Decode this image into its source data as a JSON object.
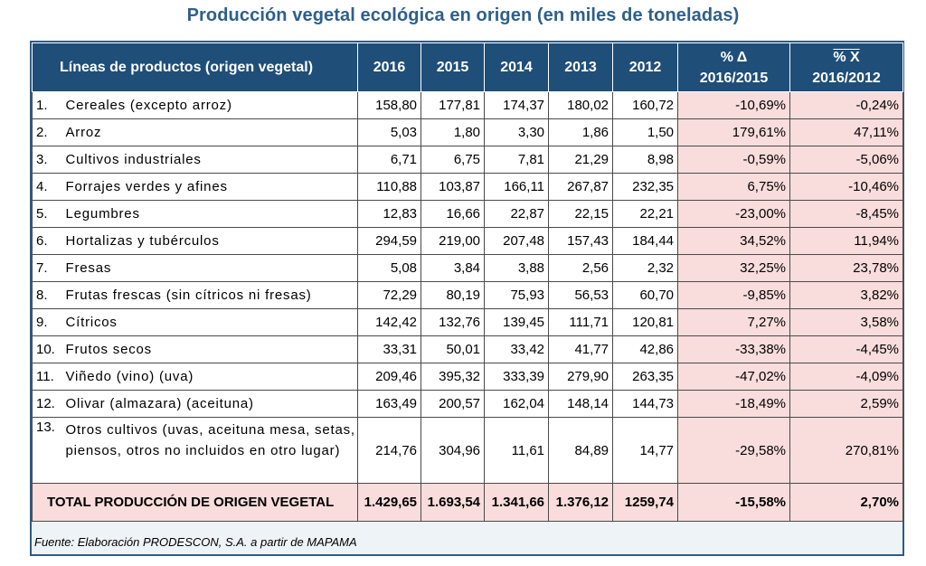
{
  "title": "Producción vegetal ecológica en origen (en miles de toneladas)",
  "headers": {
    "category": "Líneas de productos (origen vegetal)",
    "years": [
      "2016",
      "2015",
      "2014",
      "2013",
      "2012"
    ],
    "delta_symbol": "% Δ",
    "delta_period": "2016/2015",
    "mean_symbol": "% X",
    "mean_period": "2016/2012"
  },
  "rows": [
    {
      "idx": "1.",
      "name": "Cereales (excepto arroz)",
      "v": [
        "158,80",
        "177,81",
        "174,37",
        "180,02",
        "160,72"
      ],
      "delta": "-10,69%",
      "mean": "-0,24%"
    },
    {
      "idx": "2.",
      "name": "Arroz",
      "v": [
        "5,03",
        "1,80",
        "3,30",
        "1,86",
        "1,50"
      ],
      "delta": "179,61%",
      "mean": "47,11%"
    },
    {
      "idx": "3.",
      "name": "Cultivos industriales",
      "v": [
        "6,71",
        "6,75",
        "7,81",
        "21,29",
        "8,98"
      ],
      "delta": "-0,59%",
      "mean": "-5,06%"
    },
    {
      "idx": "4.",
      "name": "Forrajes verdes y afines",
      "v": [
        "110,88",
        "103,87",
        "166,11",
        "267,87",
        "232,35"
      ],
      "delta": "6,75%",
      "mean": "-10,46%"
    },
    {
      "idx": "5.",
      "name": "Legumbres",
      "v": [
        "12,83",
        "16,66",
        "22,87",
        "22,15",
        "22,21"
      ],
      "delta": "-23,00%",
      "mean": "-8,45%"
    },
    {
      "idx": "6.",
      "name": "Hortalizas y tubérculos",
      "v": [
        "294,59",
        "219,00",
        "207,48",
        "157,43",
        "184,44"
      ],
      "delta": "34,52%",
      "mean": "11,94%"
    },
    {
      "idx": "7.",
      "name": "Fresas",
      "v": [
        "5,08",
        "3,84",
        "3,88",
        "2,56",
        "2,32"
      ],
      "delta": "32,25%",
      "mean": "23,78%"
    },
    {
      "idx": "8.",
      "name": "Frutas frescas (sin cítricos ni fresas)",
      "v": [
        "72,29",
        "80,19",
        "75,93",
        "56,53",
        "60,70"
      ],
      "delta": "-9,85%",
      "mean": "3,82%"
    },
    {
      "idx": "9.",
      "name": "Cítricos",
      "v": [
        "142,42",
        "132,76",
        "139,45",
        "111,71",
        "120,81"
      ],
      "delta": "7,27%",
      "mean": "3,58%"
    },
    {
      "idx": "10.",
      "name": "Frutos secos",
      "v": [
        "33,31",
        "50,01",
        "33,42",
        "41,77",
        "42,86"
      ],
      "delta": "-33,38%",
      "mean": "-4,45%"
    },
    {
      "idx": "11.",
      "name": "Viñedo (vino) (uva)",
      "v": [
        "209,46",
        "395,32",
        "333,39",
        "279,90",
        "263,35"
      ],
      "delta": "-47,02%",
      "mean": "-4,09%"
    },
    {
      "idx": "12.",
      "name": "Olivar (almazara) (aceituna)",
      "v": [
        "163,49",
        "200,57",
        "162,04",
        "148,14",
        "144,73"
      ],
      "delta": "-18,49%",
      "mean": "2,59%"
    },
    {
      "idx": "13.",
      "name": "Otros cultivos (uvas, aceituna mesa, setas, piensos, otros no incluidos en otro lugar)",
      "v": [
        "214,76",
        "304,96",
        "11,61",
        "84,89",
        "14,77"
      ],
      "delta": "-29,58%",
      "mean": "270,81%"
    }
  ],
  "total": {
    "label": "TOTAL  PRODUCCIÓN DE ORIGEN VEGETAL",
    "v": [
      "1.429,65",
      "1.693,54",
      "1.341,66",
      "1.376,12",
      "1259,74"
    ],
    "delta": "-15,58%",
    "mean": "2,70%"
  },
  "source": "Fuente: Elaboración PRODESCON, S.A. a partir de MAPAMA",
  "colors": {
    "title": "#2e5f8a",
    "header_bg": "#1f4e79",
    "pct_bg": "#f9dcdc",
    "frame": "#2f5b84"
  },
  "chart_data": {
    "type": "table",
    "title": "Producción vegetal ecológica en origen (en miles de toneladas)",
    "columns": [
      "Líneas de productos (origen vegetal)",
      "2016",
      "2015",
      "2014",
      "2013",
      "2012",
      "% Δ 2016/2015",
      "% X 2016/2012"
    ],
    "series": [
      {
        "name": "2016",
        "values": [
          158.8,
          5.03,
          6.71,
          110.88,
          12.83,
          294.59,
          5.08,
          72.29,
          142.42,
          33.31,
          209.46,
          163.49,
          214.76
        ]
      },
      {
        "name": "2015",
        "values": [
          177.81,
          1.8,
          6.75,
          103.87,
          16.66,
          219.0,
          3.84,
          80.19,
          132.76,
          50.01,
          395.32,
          200.57,
          304.96
        ]
      },
      {
        "name": "2014",
        "values": [
          174.37,
          3.3,
          7.81,
          166.11,
          22.87,
          207.48,
          3.88,
          75.93,
          139.45,
          33.42,
          333.39,
          162.04,
          11.61
        ]
      },
      {
        "name": "2013",
        "values": [
          180.02,
          1.86,
          21.29,
          267.87,
          22.15,
          157.43,
          2.56,
          56.53,
          111.71,
          41.77,
          279.9,
          148.14,
          84.89
        ]
      },
      {
        "name": "2012",
        "values": [
          160.72,
          1.5,
          8.98,
          232.35,
          22.21,
          184.44,
          2.32,
          60.7,
          120.81,
          42.86,
          263.35,
          144.73,
          14.77
        ]
      }
    ]
  }
}
